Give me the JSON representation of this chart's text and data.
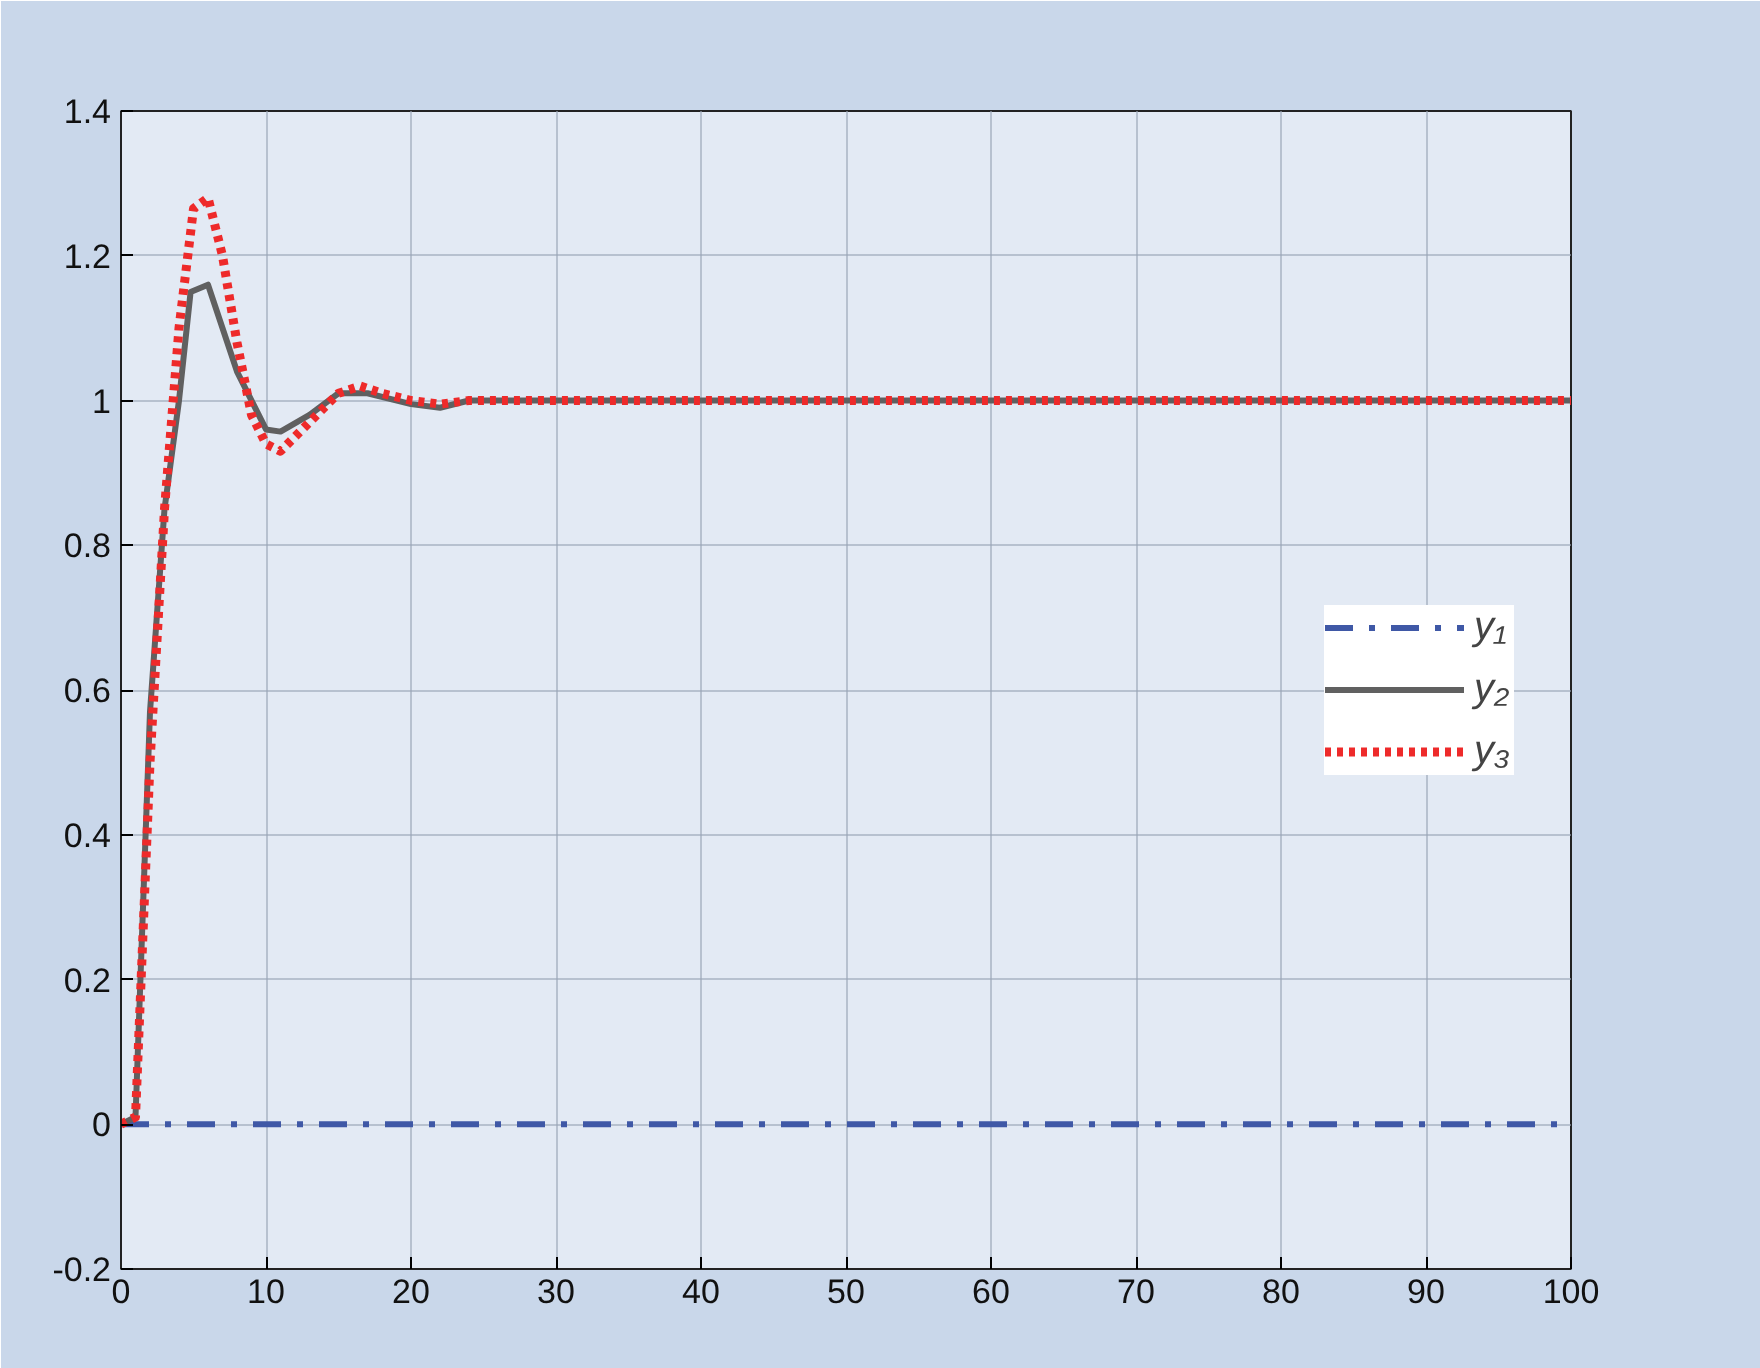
{
  "chart_data": {
    "type": "line",
    "xlim": [
      0,
      100
    ],
    "ylim": [
      -0.2,
      1.4
    ],
    "xticks": [
      0,
      10,
      20,
      30,
      40,
      50,
      60,
      70,
      80,
      90,
      100
    ],
    "yticks": [
      -0.2,
      0,
      0.2,
      0.4,
      0.6,
      0.8,
      1,
      1.2,
      1.4
    ],
    "grid": true,
    "legend": "right",
    "series": [
      {
        "name": "y₁",
        "color": "#3f58a6",
        "line_style": "dashdot",
        "x": [
          0,
          100
        ],
        "values": [
          0,
          0
        ]
      },
      {
        "name": "y₂",
        "color": "#606060",
        "line_style": "solid",
        "x": [
          0,
          1,
          2,
          3,
          4,
          4.8,
          6,
          8,
          10,
          11,
          13,
          15,
          17,
          20,
          22,
          24,
          100
        ],
        "values": [
          0,
          0.01,
          0.57,
          0.85,
          1.0,
          1.15,
          1.16,
          1.04,
          0.96,
          0.957,
          0.98,
          1.01,
          1.01,
          0.995,
          0.99,
          1.0,
          1.0
        ]
      },
      {
        "name": "y₃",
        "color": "#ee2a2a",
        "line_style": "dotted",
        "x": [
          0,
          1,
          2,
          3,
          4,
          5,
          6,
          7,
          8,
          9,
          10,
          11,
          13,
          15,
          16.5,
          18,
          20,
          22,
          24,
          100
        ],
        "values": [
          0,
          0.01,
          0.5,
          0.85,
          1.1,
          1.265,
          1.28,
          1.2,
          1.08,
          0.98,
          0.94,
          0.93,
          0.97,
          1.01,
          1.02,
          1.01,
          1.0,
          0.995,
          1.0,
          1.0
        ]
      }
    ]
  }
}
